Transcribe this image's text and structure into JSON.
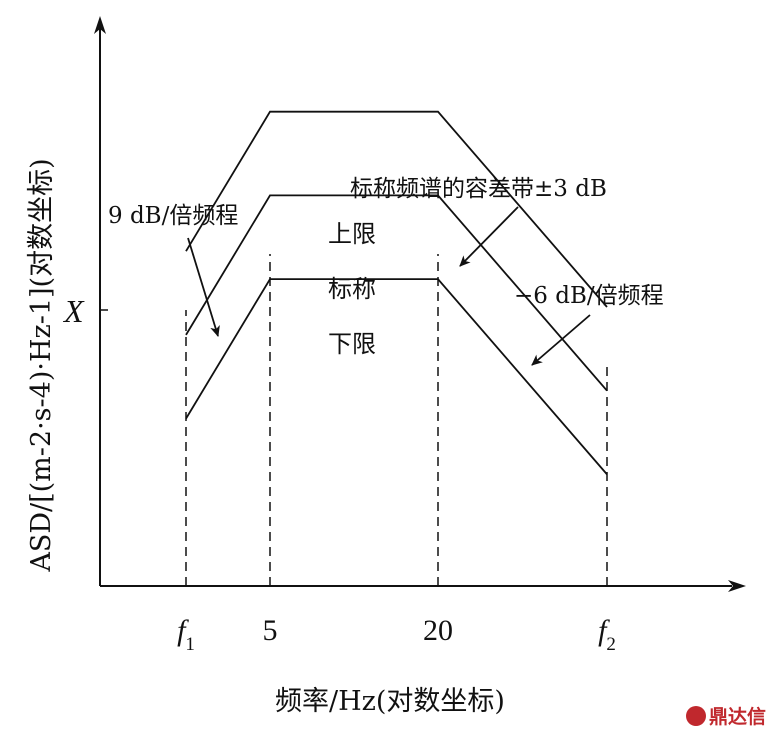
{
  "chart_data": {
    "type": "line",
    "xscale": "log",
    "x_tick_labels": [
      "f",
      "5",
      "20",
      "f"
    ],
    "x_tick_subscripts": [
      "1",
      "",
      "",
      "2"
    ],
    "x_ticks": [
      "f1",
      5,
      20,
      "f2"
    ],
    "y_tick_label": "X",
    "xlabel": "频率/Hz(对数坐标)",
    "ylabel": "ASD/[(m-2·s-4)·Hz-1](对数坐标)",
    "series": [
      {
        "name": "上限",
        "points": [
          [
            "f1",
            0.6
          ],
          [
            5,
            0.85
          ],
          [
            20,
            0.85
          ],
          [
            "f2",
            0.5
          ]
        ]
      },
      {
        "name": "标称",
        "points": [
          [
            "f1",
            0.45
          ],
          [
            5,
            0.7
          ],
          [
            20,
            0.7
          ],
          [
            "f2",
            0.35
          ]
        ]
      },
      {
        "name": "下限",
        "points": [
          [
            "f1",
            0.3
          ],
          [
            5,
            0.55
          ],
          [
            20,
            0.55
          ],
          [
            "f2",
            0.2
          ]
        ]
      }
    ],
    "annotations": {
      "slope_up": "9 dB/倍频程",
      "tolerance": "标称频谱的容差带±3 dB",
      "slope_down": "−6 dB/倍频程"
    },
    "grid": false
  },
  "watermark": "鼎达信"
}
